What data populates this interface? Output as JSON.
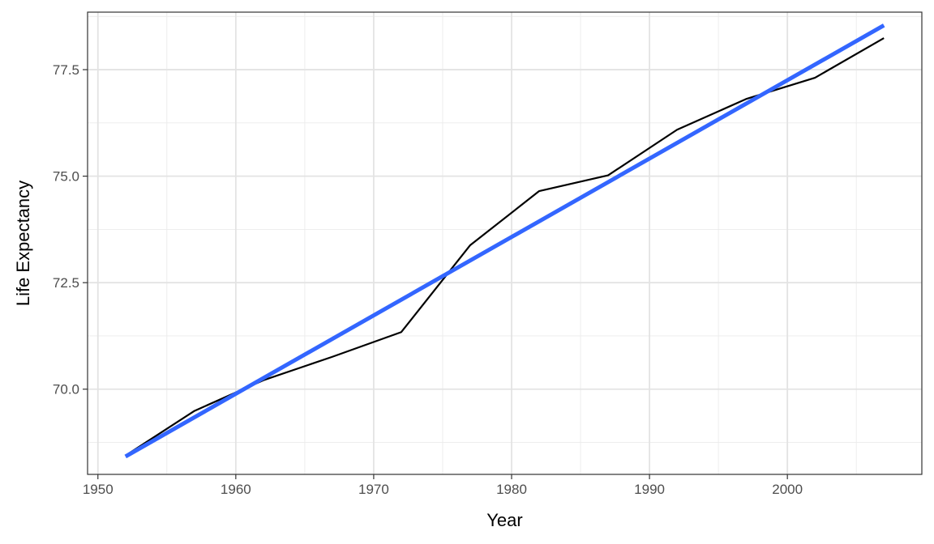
{
  "chart_data": {
    "type": "line",
    "title": "",
    "xlabel": "Year",
    "ylabel": "Life Expectancy",
    "xlim": [
      1949.25,
      2009.75
    ],
    "ylim": [
      68.0,
      78.85
    ],
    "x_ticks": [
      1950,
      1960,
      1970,
      1980,
      1990,
      2000
    ],
    "x_tick_labels": [
      "1950",
      "1960",
      "1970",
      "1980",
      "1990",
      "2000"
    ],
    "y_ticks": [
      70.0,
      72.5,
      75.0,
      77.5
    ],
    "y_tick_labels": [
      "70.0",
      "72.5",
      "75.0",
      "77.5"
    ],
    "grid": true,
    "legend": "none",
    "series": [
      {
        "kind": "line",
        "color": "#000000",
        "x": [
          1952,
          1957,
          1962,
          1967,
          1972,
          1977,
          1982,
          1987,
          1992,
          1997,
          2002,
          2007
        ],
        "y": [
          68.44,
          69.49,
          70.21,
          70.76,
          71.34,
          73.38,
          74.65,
          75.02,
          76.09,
          76.81,
          77.31,
          78.24
        ]
      },
      {
        "kind": "linear-fit",
        "color": "#3366ff",
        "x": [
          1952,
          2007
        ],
        "y": [
          68.42,
          78.54
        ]
      }
    ]
  }
}
